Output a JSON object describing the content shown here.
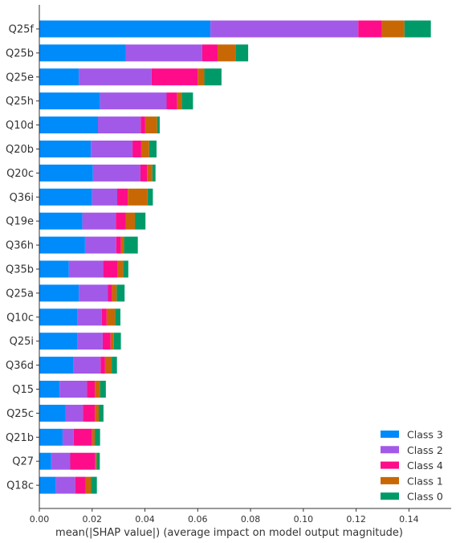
{
  "chart_data": {
    "type": "bar",
    "orientation": "horizontal",
    "stacked": true,
    "xlabel": "mean(|SHAP value|) (average impact on model output magnitude)",
    "ylabel": "",
    "xlim": [
      0,
      0.156
    ],
    "xticks": [
      0.0,
      0.02,
      0.04,
      0.06,
      0.08,
      0.1,
      0.12,
      0.14
    ],
    "xtick_labels": [
      "0.00",
      "0.02",
      "0.04",
      "0.06",
      "0.08",
      "0.10",
      "0.12",
      "0.14"
    ],
    "grid": false,
    "legend_position": "bottom-right",
    "categories": [
      "Q25f",
      "Q25b",
      "Q25e",
      "Q25h",
      "Q10d",
      "Q20b",
      "Q20c",
      "Q36i",
      "Q19e",
      "Q36h",
      "Q35b",
      "Q25a",
      "Q10c",
      "Q25i",
      "Q36d",
      "Q15",
      "Q25c",
      "Q21b",
      "Q27",
      "Q18c"
    ],
    "series": [
      {
        "name": "Class 3",
        "color": "#008bfb",
        "values": [
          0.0648,
          0.0327,
          0.015,
          0.023,
          0.0222,
          0.0195,
          0.0203,
          0.02,
          0.0163,
          0.0173,
          0.0112,
          0.015,
          0.0145,
          0.0145,
          0.013,
          0.0077,
          0.01,
          0.0088,
          0.0045,
          0.0063
        ]
      },
      {
        "name": "Class 2",
        "color": "#a259e8",
        "values": [
          0.056,
          0.029,
          0.0275,
          0.0252,
          0.0162,
          0.0158,
          0.018,
          0.0095,
          0.0127,
          0.0118,
          0.013,
          0.011,
          0.0092,
          0.0095,
          0.0102,
          0.0103,
          0.0065,
          0.0042,
          0.0072,
          0.0073
        ]
      },
      {
        "name": "Class 4",
        "color": "#ff0c8a",
        "values": [
          0.009,
          0.0058,
          0.0175,
          0.004,
          0.0017,
          0.0033,
          0.0025,
          0.004,
          0.0037,
          0.0018,
          0.0055,
          0.0015,
          0.0018,
          0.003,
          0.0017,
          0.003,
          0.0045,
          0.007,
          0.0095,
          0.004
        ]
      },
      {
        "name": "Class 1",
        "color": "#c86805",
        "values": [
          0.0085,
          0.0068,
          0.0025,
          0.0018,
          0.0045,
          0.003,
          0.002,
          0.0075,
          0.0035,
          0.0012,
          0.002,
          0.0018,
          0.0032,
          0.0012,
          0.0025,
          0.002,
          0.0015,
          0.001,
          0.0005,
          0.002
        ]
      },
      {
        "name": "Class 0",
        "color": "#009a69",
        "values": [
          0.01,
          0.0048,
          0.0065,
          0.0042,
          0.001,
          0.0028,
          0.0012,
          0.002,
          0.004,
          0.0052,
          0.002,
          0.003,
          0.002,
          0.0027,
          0.002,
          0.0022,
          0.0018,
          0.002,
          0.0012,
          0.0022
        ]
      }
    ],
    "legend_order": [
      "Class 3",
      "Class 2",
      "Class 4",
      "Class 1",
      "Class 0"
    ]
  }
}
